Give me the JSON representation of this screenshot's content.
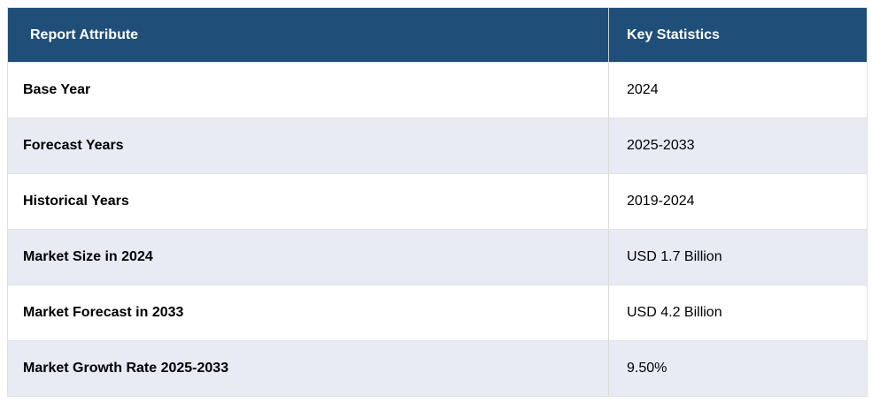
{
  "chart_data": {
    "type": "table",
    "title": "Report Attribute / Key Statistics",
    "columns": [
      "Report Attribute",
      "Key Statistics"
    ],
    "rows": [
      [
        "Base Year",
        "2024"
      ],
      [
        "Forecast Years",
        "2025-2033"
      ],
      [
        "Historical Years",
        "2019-2024"
      ],
      [
        "Market Size in 2024",
        "USD 1.7 Billion"
      ],
      [
        "Market Forecast in 2033",
        "USD 4.2 Billion"
      ],
      [
        "Market Growth Rate 2025-2033",
        "9.50%"
      ]
    ]
  },
  "table": {
    "header": {
      "attribute_label": "Report Attribute",
      "statistics_label": "Key Statistics"
    },
    "rows": [
      {
        "attribute": "Base Year",
        "value": "2024"
      },
      {
        "attribute": "Forecast Years",
        "value": "2025-2033"
      },
      {
        "attribute": "Historical Years",
        "value": "2019-2024"
      },
      {
        "attribute": "Market Size in 2024",
        "value": "USD 1.7 Billion"
      },
      {
        "attribute": "Market Forecast in 2033",
        "value": "USD 4.2 Billion"
      },
      {
        "attribute": "Market Growth Rate 2025-2033",
        "value": "9.50%"
      }
    ],
    "colors": {
      "header_bg": "#1f4e79",
      "header_text": "#ffffff",
      "stripe_bg": "#e8eaf4",
      "row_bg": "#ffffff",
      "border": "#e0e0e0",
      "body_text": "#000000"
    }
  }
}
